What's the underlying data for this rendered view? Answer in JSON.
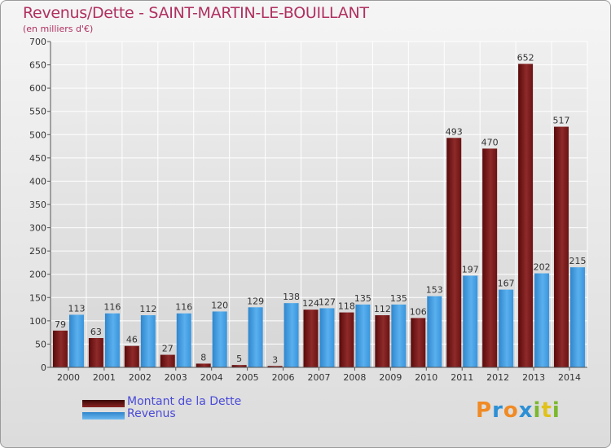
{
  "header": {
    "title": "Revenus/Dette - SAINT-MARTIN-LE-BOUILLANT",
    "subtitle": "(en milliers d'€)"
  },
  "colors": {
    "debt": "#7a1818",
    "debt_light": "#a04040",
    "revenue": "#3a9ae0",
    "revenue_light": "#6cb8f0",
    "title": "#b03060",
    "legend_text": "#4a4ad8"
  },
  "legend": {
    "debt_label": "Montant de la Dette",
    "revenue_label": "Revenus"
  },
  "logo": {
    "letters": [
      "P",
      "r",
      "o",
      "x",
      "i",
      "t",
      "i"
    ]
  },
  "chart_data": {
    "type": "bar",
    "title": "Revenus/Dette - SAINT-MARTIN-LE-BOUILLANT",
    "subtitle": "(en milliers d'€)",
    "categories": [
      "2000",
      "2001",
      "2002",
      "2003",
      "2004",
      "2005",
      "2006",
      "2007",
      "2008",
      "2009",
      "2010",
      "2011",
      "2012",
      "2013",
      "2014"
    ],
    "series": [
      {
        "name": "Montant de la Dette",
        "values": [
          79,
          63,
          46,
          27,
          8,
          5,
          3,
          124,
          118,
          112,
          106,
          493,
          470,
          652,
          517
        ]
      },
      {
        "name": "Revenus",
        "values": [
          113,
          116,
          112,
          116,
          120,
          129,
          138,
          127,
          135,
          135,
          153,
          197,
          167,
          202,
          215
        ]
      }
    ],
    "ylim": [
      0,
      700
    ],
    "yticks": [
      0,
      50,
      100,
      150,
      200,
      250,
      300,
      350,
      400,
      450,
      500,
      550,
      600,
      650,
      700
    ],
    "grid": true,
    "legend_position": "bottom-left"
  }
}
